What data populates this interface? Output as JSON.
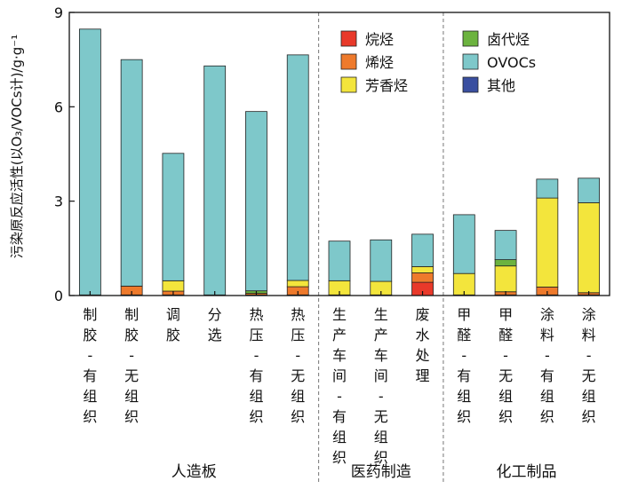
{
  "chart_data": {
    "type": "bar",
    "stacked": true,
    "ylabel": "污染原反应活性(以O₃/VOCs计)/g·g⁻¹",
    "ylim": [
      0,
      9
    ],
    "yticks": [
      0,
      3,
      6,
      9
    ],
    "grid": false,
    "legend_position": "top-right, inside plot, 3×2 grid",
    "categories": [
      "制胶-有组织",
      "制胶-无组织",
      "调胶",
      "分选",
      "热压-有组织",
      "热压-无组织",
      "生产车间-有组织",
      "生产车间-无组织",
      "废水处理",
      "甲醛-有组织",
      "甲醛-无组织",
      "涂料-有组织",
      "涂料-无组织"
    ],
    "category_label_chars": [
      [
        "制",
        "胶",
        "-",
        "有",
        "组",
        "织"
      ],
      [
        "制",
        "胶",
        "-",
        "无",
        "组",
        "织"
      ],
      [
        "调",
        "胶"
      ],
      [
        "分",
        "选"
      ],
      [
        "热",
        "压",
        "-",
        "有",
        "组",
        "织"
      ],
      [
        "热",
        "压",
        "-",
        "无",
        "组",
        "织"
      ],
      [
        "生",
        "产",
        "车",
        "间",
        "-",
        "有",
        "组",
        "织"
      ],
      [
        "生",
        "产",
        "车",
        "间",
        "-",
        "无",
        "组",
        "织"
      ],
      [
        "废",
        "水",
        "处",
        "理"
      ],
      [
        "甲",
        "醛",
        "-",
        "有",
        "组",
        "织"
      ],
      [
        "甲",
        "醛",
        "-",
        "无",
        "组",
        "织"
      ],
      [
        "涂",
        "料",
        "-",
        "有",
        "组",
        "织"
      ],
      [
        "涂",
        "料",
        "-",
        "无",
        "组",
        "织"
      ]
    ],
    "groups": [
      {
        "name": "人造板",
        "count": 6
      },
      {
        "name": "医药制造",
        "count": 3
      },
      {
        "name": "化工制品",
        "count": 4
      }
    ],
    "series": [
      {
        "name": "烷烃",
        "color": "#e8392a",
        "values": [
          0.02,
          0.02,
          0.02,
          0.02,
          0.02,
          0.02,
          0.02,
          0.02,
          0.42,
          0.02,
          0.02,
          0.02,
          0.02
        ]
      },
      {
        "name": "烯烃",
        "color": "#ee7a2c",
        "values": [
          0.0,
          0.28,
          0.12,
          0.0,
          0.05,
          0.26,
          0.0,
          0.0,
          0.3,
          0.0,
          0.1,
          0.25,
          0.07
        ]
      },
      {
        "name": "芳香烃",
        "color": "#f3e53c",
        "values": [
          0.0,
          0.0,
          0.33,
          0.0,
          0.0,
          0.2,
          0.45,
          0.43,
          0.2,
          0.68,
          0.82,
          2.83,
          2.86
        ]
      },
      {
        "name": "卤代烃",
        "color": "#6cb33f",
        "values": [
          0.0,
          0.0,
          0.0,
          0.0,
          0.08,
          0.0,
          0.0,
          0.0,
          0.0,
          0.0,
          0.2,
          0.0,
          0.0
        ]
      },
      {
        "name": "OVOCs",
        "color": "#7ec8ca",
        "values": [
          8.45,
          7.2,
          4.05,
          7.28,
          5.7,
          7.17,
          1.26,
          1.32,
          1.03,
          1.87,
          0.93,
          0.6,
          0.78
        ]
      },
      {
        "name": "其他",
        "color": "#3a4fa0",
        "values": [
          0,
          0,
          0,
          0,
          0,
          0,
          0,
          0,
          0,
          0,
          0,
          0,
          0
        ]
      }
    ]
  }
}
